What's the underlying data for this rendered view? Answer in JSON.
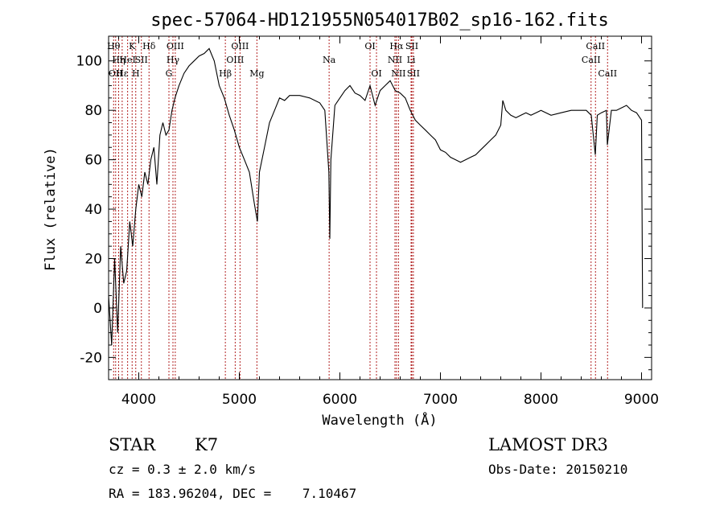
{
  "chart_data": {
    "type": "line",
    "title": "spec-57064-HD121955N054017B02_sp16-162.fits",
    "xlabel": "Wavelength (Å)",
    "ylabel": "Flux (relative)",
    "xlim": [
      3700,
      9100
    ],
    "ylim": [
      -29,
      110
    ],
    "xticks": [
      "4000",
      "5000",
      "6000",
      "7000",
      "8000",
      "9000"
    ],
    "yticks": [
      "-20",
      "0",
      "20",
      "40",
      "60",
      "80",
      "100"
    ],
    "grid": false,
    "line_color": "#000000",
    "marker_color": "#b22222",
    "series": [
      {
        "x": [
          3700,
          3730,
          3760,
          3790,
          3820,
          3850,
          3880,
          3910,
          3940,
          3970,
          4000,
          4030,
          4060,
          4090,
          4120,
          4150,
          4180,
          4210,
          4240,
          4270,
          4300,
          4330,
          4360,
          4400,
          4450,
          4500,
          4550,
          4600,
          4650,
          4700,
          4750,
          4800,
          4850,
          4900,
          4950,
          5000,
          5050,
          5100,
          5150,
          5180,
          5200,
          5250,
          5300,
          5350,
          5400,
          5450,
          5500,
          5600,
          5700,
          5800,
          5850,
          5890,
          5900,
          5910,
          5950,
          6000,
          6050,
          6100,
          6150,
          6200,
          6250,
          6300,
          6350,
          6400,
          6450,
          6500,
          6550,
          6600,
          6650,
          6700,
          6750,
          6800,
          6850,
          6900,
          6950,
          7000,
          7050,
          7100,
          7150,
          7200,
          7250,
          7300,
          7350,
          7400,
          7450,
          7500,
          7550,
          7600,
          7620,
          7650,
          7700,
          7750,
          7800,
          7850,
          7900,
          7950,
          8000,
          8100,
          8200,
          8300,
          8400,
          8450,
          8500,
          8540,
          8560,
          8600,
          8650,
          8660,
          8700,
          8750,
          8800,
          8850,
          8900,
          8950,
          9000,
          9010
        ],
        "y": [
          5,
          -15,
          20,
          -10,
          25,
          10,
          15,
          35,
          25,
          40,
          50,
          45,
          55,
          50,
          60,
          65,
          50,
          70,
          75,
          70,
          72,
          80,
          85,
          90,
          95,
          98,
          100,
          102,
          103,
          105,
          100,
          90,
          85,
          78,
          72,
          65,
          60,
          55,
          42,
          35,
          55,
          65,
          75,
          80,
          85,
          84,
          86,
          86,
          85,
          83,
          80,
          55,
          28,
          60,
          82,
          85,
          88,
          90,
          87,
          86,
          84,
          90,
          82,
          88,
          90,
          92,
          88,
          87,
          85,
          80,
          76,
          74,
          72,
          70,
          68,
          64,
          63,
          61,
          60,
          59,
          60,
          61,
          62,
          64,
          66,
          68,
          70,
          74,
          84,
          80,
          78,
          77,
          78,
          79,
          78,
          79,
          80,
          78,
          79,
          80,
          80,
          80,
          78,
          62,
          78,
          79,
          80,
          66,
          80,
          80,
          81,
          82,
          80,
          79,
          76,
          0
        ]
      }
    ],
    "line_markers": [
      {
        "wavelength": 3750,
        "label": "Hθ",
        "row": 0
      },
      {
        "wavelength": 3770,
        "label": "OII",
        "row": 2
      },
      {
        "wavelength": 3800,
        "label": "Hη",
        "row": 1
      },
      {
        "wavelength": 3835,
        "label": "Hε",
        "row": 2
      },
      {
        "wavelength": 3889,
        "label": "HeI",
        "row": 1
      },
      {
        "wavelength": 3934,
        "label": "K",
        "row": 0
      },
      {
        "wavelength": 3970,
        "label": "H",
        "row": 2
      },
      {
        "wavelength": 4026,
        "label": "SII",
        "row": 1
      },
      {
        "wavelength": 4102,
        "label": "Hδ",
        "row": 0
      },
      {
        "wavelength": 4300,
        "label": "G",
        "row": 2
      },
      {
        "wavelength": 4340,
        "label": "Hγ",
        "row": 1
      },
      {
        "wavelength": 4363,
        "label": "OIII",
        "row": 0
      },
      {
        "wavelength": 4861,
        "label": "Hβ",
        "row": 2
      },
      {
        "wavelength": 4959,
        "label": "OIII",
        "row": 1
      },
      {
        "wavelength": 5007,
        "label": "OIII",
        "row": 0
      },
      {
        "wavelength": 5175,
        "label": "Mg",
        "row": 2
      },
      {
        "wavelength": 5893,
        "label": "Na",
        "row": 1
      },
      {
        "wavelength": 6300,
        "label": "OI",
        "row": 0
      },
      {
        "wavelength": 6364,
        "label": "OI",
        "row": 2
      },
      {
        "wavelength": 6548,
        "label": "NII",
        "row": 1
      },
      {
        "wavelength": 6563,
        "label": "Hα",
        "row": 0
      },
      {
        "wavelength": 6583,
        "label": "NII",
        "row": 2
      },
      {
        "wavelength": 6708,
        "label": "Li",
        "row": 1
      },
      {
        "wavelength": 6716,
        "label": "SII",
        "row": 0
      },
      {
        "wavelength": 6731,
        "label": "SII",
        "row": 2
      },
      {
        "wavelength": 8498,
        "label": "CaII",
        "row": 1
      },
      {
        "wavelength": 8542,
        "label": "CaII",
        "row": 0
      },
      {
        "wavelength": 8662,
        "label": "CaII",
        "row": 2
      }
    ]
  },
  "info": {
    "class_label": "STAR",
    "subclass": "K7",
    "survey": "LAMOST DR3",
    "cz_text": "cz = 0.3 ± 2.0 km/s",
    "obs_date_text": "Obs-Date: 20150210",
    "radec_text": "RA = 183.96204, DEC =    7.10467"
  }
}
